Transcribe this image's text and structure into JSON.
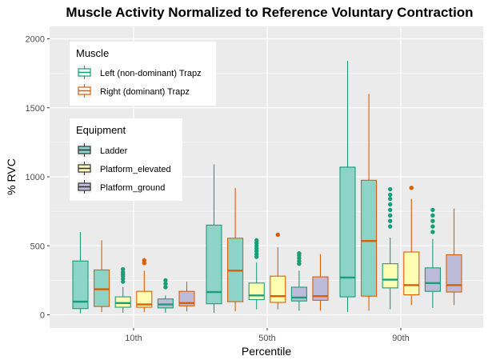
{
  "chart_data": {
    "type": "boxplot",
    "title": "Muscle Activity Normalized to Reference Voluntary Contraction",
    "xlabel": "Percentile",
    "ylabel": "% RVC",
    "categories": [
      "10th",
      "50th",
      "90th"
    ],
    "y_ticks": [
      "0",
      "500",
      "1000",
      "1500",
      "2000"
    ],
    "ylim": [
      -80,
      2130
    ],
    "grid": true,
    "legend_placement": "top-left",
    "legend_muscle": {
      "title": "Muscle",
      "items": [
        {
          "label": "Left (non-dominant) Trapz",
          "color": "#1b9e77"
        },
        {
          "label": "Right (dominant) Trapz",
          "color": "#d95f02"
        }
      ]
    },
    "legend_equipment": {
      "title": "Equipment",
      "items": [
        {
          "label": "Ladder",
          "fill": "#8dd3c7"
        },
        {
          "label": "Platform_elevated",
          "fill": "#ffffb3"
        },
        {
          "label": "Platform_ground",
          "fill": "#bebada"
        }
      ]
    },
    "colors": {
      "Left": "#1b9e77",
      "Right": "#d95f02",
      "Ladder": "#8dd3c7",
      "Platform_elevated": "#ffffb3",
      "Platform_ground": "#bebada"
    },
    "series": [
      {
        "percentile": "10th",
        "equipment": "Ladder",
        "muscle": "Left",
        "min": 10,
        "q1": 45,
        "median": 95,
        "q3": 390,
        "max": 600,
        "outliers": []
      },
      {
        "percentile": "10th",
        "equipment": "Ladder",
        "muscle": "Right",
        "min": 20,
        "q1": 60,
        "median": 185,
        "q3": 325,
        "max": 540,
        "outliers": []
      },
      {
        "percentile": "10th",
        "equipment": "Platform_elevated",
        "muscle": "Left",
        "min": 15,
        "q1": 55,
        "median": 85,
        "q3": 130,
        "max": 200,
        "outliers": [
          240,
          260,
          280,
          295,
          310,
          330
        ]
      },
      {
        "percentile": "10th",
        "equipment": "Platform_elevated",
        "muscle": "Right",
        "min": 20,
        "q1": 55,
        "median": 75,
        "q3": 170,
        "max": 320,
        "outliers": [
          375,
          395
        ]
      },
      {
        "percentile": "10th",
        "equipment": "Platform_ground",
        "muscle": "Left",
        "min": 15,
        "q1": 50,
        "median": 75,
        "q3": 115,
        "max": 140,
        "outliers": [
          200,
          225,
          250
        ]
      },
      {
        "percentile": "10th",
        "equipment": "Platform_ground",
        "muscle": "Right",
        "min": 25,
        "q1": 65,
        "median": 85,
        "q3": 170,
        "max": 240,
        "outliers": []
      },
      {
        "percentile": "50th",
        "equipment": "Ladder",
        "muscle": "Left",
        "min": 15,
        "q1": 80,
        "median": 165,
        "q3": 650,
        "max": 1090,
        "outliers": []
      },
      {
        "percentile": "50th",
        "equipment": "Ladder",
        "muscle": "Right",
        "min": 25,
        "q1": 95,
        "median": 320,
        "q3": 555,
        "max": 920,
        "outliers": []
      },
      {
        "percentile": "50th",
        "equipment": "Platform_elevated",
        "muscle": "Left",
        "min": 40,
        "q1": 110,
        "median": 140,
        "q3": 230,
        "max": 380,
        "outliers": [
          420,
          440,
          460,
          480,
          500,
          520,
          540
        ]
      },
      {
        "percentile": "50th",
        "equipment": "Platform_elevated",
        "muscle": "Right",
        "min": 40,
        "q1": 90,
        "median": 135,
        "q3": 280,
        "max": 490,
        "outliers": [
          580
        ]
      },
      {
        "percentile": "50th",
        "equipment": "Platform_ground",
        "muscle": "Left",
        "min": 30,
        "q1": 100,
        "median": 125,
        "q3": 200,
        "max": 320,
        "outliers": [
          370,
          390,
          410,
          430,
          445
        ]
      },
      {
        "percentile": "50th",
        "equipment": "Platform_ground",
        "muscle": "Right",
        "min": 30,
        "q1": 105,
        "median": 135,
        "q3": 275,
        "max": 440,
        "outliers": []
      },
      {
        "percentile": "90th",
        "equipment": "Ladder",
        "muscle": "Left",
        "min": 20,
        "q1": 130,
        "median": 270,
        "q3": 1070,
        "max": 1840,
        "outliers": []
      },
      {
        "percentile": "90th",
        "equipment": "Ladder",
        "muscle": "Right",
        "min": 30,
        "q1": 135,
        "median": 535,
        "q3": 975,
        "max": 1600,
        "outliers": []
      },
      {
        "percentile": "90th",
        "equipment": "Platform_elevated",
        "muscle": "Left",
        "min": 40,
        "q1": 195,
        "median": 255,
        "q3": 370,
        "max": 560,
        "outliers": [
          640,
          680,
          720,
          760,
          800,
          840,
          870,
          910
        ]
      },
      {
        "percentile": "90th",
        "equipment": "Platform_elevated",
        "muscle": "Right",
        "min": 70,
        "q1": 145,
        "median": 215,
        "q3": 455,
        "max": 840,
        "outliers": [
          920
        ]
      },
      {
        "percentile": "90th",
        "equipment": "Platform_ground",
        "muscle": "Left",
        "min": 50,
        "q1": 170,
        "median": 230,
        "q3": 340,
        "max": 550,
        "outliers": [
          600,
          640,
          680,
          720,
          760
        ]
      },
      {
        "percentile": "90th",
        "equipment": "Platform_ground",
        "muscle": "Right",
        "min": 70,
        "q1": 165,
        "median": 215,
        "q3": 435,
        "max": 770,
        "outliers": []
      }
    ]
  }
}
